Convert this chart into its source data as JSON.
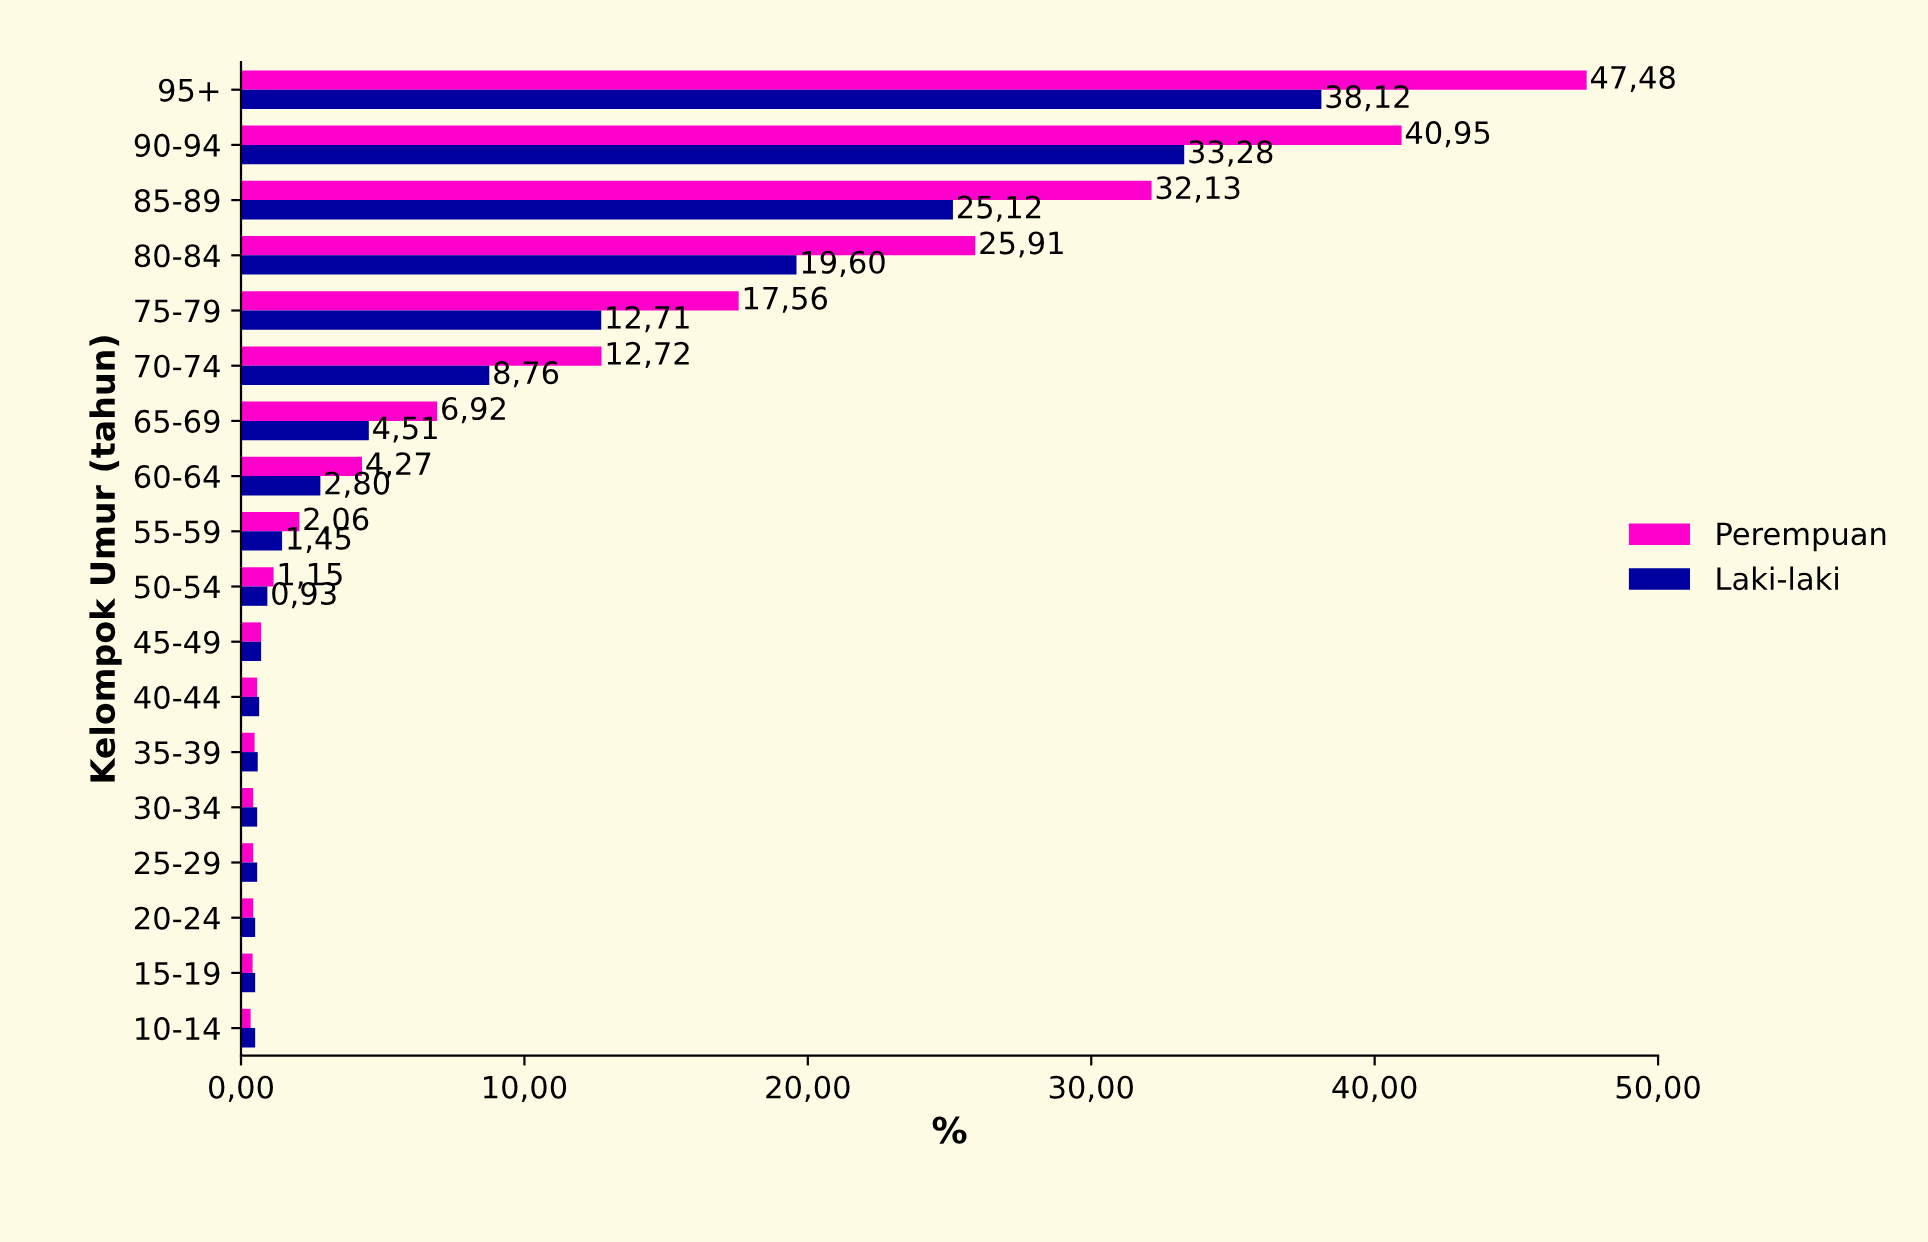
{
  "chart_data": {
    "type": "bar",
    "orientation": "horizontal",
    "xlabel": "%",
    "ylabel": "Kelompok Umur (tahun)",
    "categories": [
      "95+",
      "90-94",
      "85-89",
      "80-84",
      "75-79",
      "70-74",
      "65-69",
      "60-64",
      "55-59",
      "50-54",
      "45-49",
      "40-44",
      "35-39",
      "30-34",
      "25-29",
      "20-24",
      "15-19",
      "10-14"
    ],
    "series": [
      {
        "name": "Perempuan",
        "color": "#ff00cc",
        "values": [
          47.48,
          40.95,
          32.13,
          25.91,
          17.56,
          12.72,
          6.92,
          4.27,
          2.06,
          1.15,
          0.71,
          0.57,
          0.48,
          0.43,
          0.43,
          0.43,
          0.41,
          0.34
        ],
        "value_labels": [
          "47,48",
          "40,95",
          "32,13",
          "25,91",
          "17,56",
          "12,72",
          "6,92",
          "4,27",
          "2,06",
          "1,15",
          null,
          null,
          null,
          null,
          null,
          null,
          null,
          null
        ]
      },
      {
        "name": "Laki-laki",
        "color": "#0000a0",
        "values": [
          38.12,
          33.28,
          25.12,
          19.6,
          12.71,
          8.76,
          4.51,
          2.8,
          1.45,
          0.93,
          0.71,
          0.64,
          0.59,
          0.57,
          0.57,
          0.5,
          0.5,
          0.5
        ],
        "value_labels": [
          "38,12",
          "33,28",
          "25,12",
          "19,60",
          "12,71",
          "8,76",
          "4,51",
          "2,80",
          "1,45",
          "0,93",
          null,
          null,
          null,
          null,
          null,
          null,
          null,
          null
        ]
      }
    ],
    "xlim": [
      0,
      50
    ],
    "xticks": [
      {
        "value": 0,
        "label": "0,00"
      },
      {
        "value": 10,
        "label": "10,00"
      },
      {
        "value": 20,
        "label": "20,00"
      },
      {
        "value": 30,
        "label": "30,00"
      },
      {
        "value": 40,
        "label": "40,00"
      },
      {
        "value": 50,
        "label": "50,00"
      }
    ],
    "grid": false,
    "legend": "right"
  }
}
